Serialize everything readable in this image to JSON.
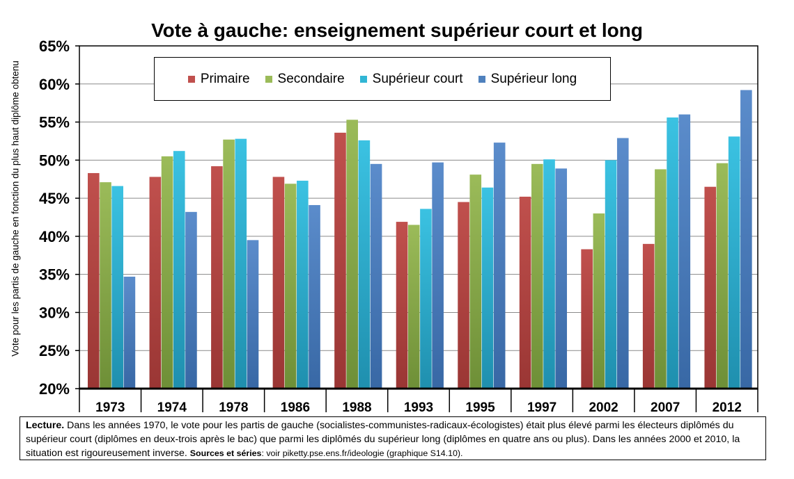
{
  "chart_data": {
    "type": "bar",
    "title": "Vote à gauche: enseignement supérieur court et long",
    "xlabel": "",
    "ylabel": "Vote pour les partis de gauche en fonction du plus haut diplôme obtenu",
    "ylim": [
      0.2,
      0.65
    ],
    "yticks": [
      "20%",
      "25%",
      "30%",
      "35%",
      "40%",
      "45%",
      "50%",
      "55%",
      "60%",
      "65%"
    ],
    "grid": true,
    "legend_position": "top",
    "categories": [
      "1973",
      "1974",
      "1978",
      "1986",
      "1988",
      "1993",
      "1995",
      "1997",
      "2002",
      "2007",
      "2012"
    ],
    "series": [
      {
        "name": "Primaire",
        "color": "#C0504D",
        "values": [
          0.483,
          0.478,
          0.492,
          0.478,
          0.536,
          0.419,
          0.445,
          0.452,
          0.383,
          0.39,
          0.465
        ]
      },
      {
        "name": "Secondaire",
        "color": "#9BBB59",
        "values": [
          0.471,
          0.505,
          0.527,
          0.469,
          0.553,
          0.415,
          0.481,
          0.495,
          0.43,
          0.488,
          0.496
        ]
      },
      {
        "name": "Supérieur court",
        "color": "#31B6D5",
        "values": [
          0.466,
          0.512,
          0.528,
          0.473,
          0.526,
          0.436,
          0.464,
          0.501,
          0.5,
          0.556,
          0.531
        ]
      },
      {
        "name": "Supérieur long",
        "color": "#4F81BD",
        "values": [
          0.347,
          0.432,
          0.395,
          0.441,
          0.495,
          0.497,
          0.523,
          0.489,
          0.529,
          0.56,
          0.592
        ]
      }
    ]
  },
  "note": {
    "lead": "Lecture.",
    "body": " Dans les années 1970, le vote pour les partis de gauche (socialistes-communistes-radicaux-écologistes) était plus élevé parmi les électeurs diplômés du supérieur court (diplômes en deux-trois après le bac) que parmi les diplômés du supérieur long (diplômes en quatre ans ou plus). Dans les années 2000 et 2010, la situation est rigoureusement inverse. ",
    "sources_label": "Sources et séries",
    "sources_text": ": voir piketty.pse.ens.fr/ideologie (graphique S14.10)."
  }
}
